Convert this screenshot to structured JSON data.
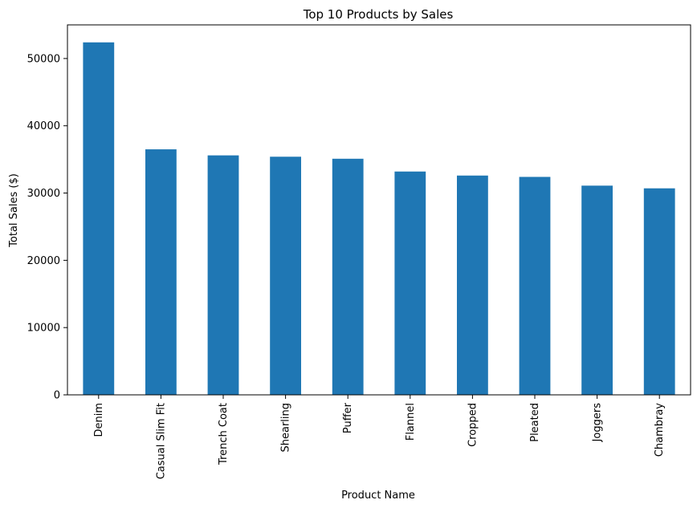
{
  "chart_data": {
    "type": "bar",
    "title": "Top 10 Products by Sales",
    "xlabel": "Product Name",
    "ylabel": "Total Sales ($)",
    "categories": [
      "Denim",
      "Casual Slim Fit",
      "Trench Coat",
      "Shearling",
      "Puffer",
      "Flannel",
      "Cropped",
      "Pleated",
      "Joggers",
      "Chambray"
    ],
    "values": [
      52400,
      36500,
      35600,
      35400,
      35100,
      33200,
      32600,
      32400,
      31100,
      30700
    ],
    "ylim": [
      0,
      55000
    ],
    "yticks": [
      0,
      10000,
      20000,
      30000,
      40000,
      50000
    ],
    "bar_color": "#1f77b4",
    "grid": false,
    "legend": false
  }
}
